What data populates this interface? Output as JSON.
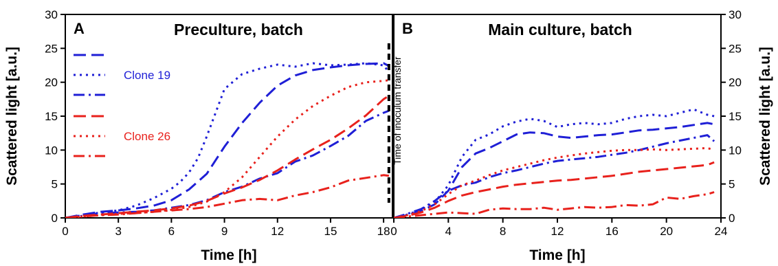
{
  "chart_data": [
    {
      "type": "line",
      "panel_label": "A",
      "title": "Preculture, batch",
      "xlabel": "Time [h]",
      "ylabel": "Scattered light   [a.u.]",
      "xlim": [
        0,
        18.5
      ],
      "ylim": [
        0,
        30
      ],
      "xticks": [
        0,
        3,
        6,
        9,
        12,
        15,
        18
      ],
      "yticks": [
        0,
        5,
        10,
        15,
        20,
        25,
        30
      ],
      "grid": false,
      "legend_position": "top-left",
      "legend_groups": [
        {
          "label": "Clone 19",
          "color": "#1f1fd6",
          "styles": [
            "dashed",
            "dotted",
            "dash-dot"
          ]
        },
        {
          "label": "Clone 26",
          "color": "#e8211c",
          "styles": [
            "dashed",
            "dotted",
            "dash-dot"
          ]
        }
      ],
      "annotation": {
        "x": 18.3,
        "text": "Time of inoculum transfer"
      },
      "series": [
        {
          "color": "#1f1fd6",
          "style": "dashed",
          "x": [
            0,
            1,
            2,
            3,
            4,
            5,
            6,
            7,
            8,
            9,
            10,
            11,
            12,
            13,
            14,
            15,
            16,
            17,
            18,
            18.3
          ],
          "y": [
            0,
            0.5,
            0.9,
            1.1,
            1.4,
            1.8,
            2.6,
            4.2,
            6.5,
            10.5,
            14,
            17,
            19.5,
            21,
            21.8,
            22.2,
            22.5,
            22.7,
            22.8,
            22.4
          ]
        },
        {
          "color": "#1f1fd6",
          "style": "dotted",
          "x": [
            0,
            1,
            2,
            3,
            4,
            5,
            6,
            6.5,
            7,
            7.5,
            8,
            8.5,
            9,
            10,
            11,
            12,
            13,
            14,
            15,
            16,
            17,
            18,
            18.3
          ],
          "y": [
            0,
            0.4,
            0.8,
            1.1,
            1.8,
            2.9,
            4.3,
            5.3,
            6.7,
            8.8,
            12,
            15.5,
            19,
            21.2,
            22,
            22.6,
            22.3,
            22.8,
            22.5,
            22.6,
            22.8,
            22.5,
            21.5
          ]
        },
        {
          "color": "#1f1fd6",
          "style": "dash-dot",
          "x": [
            0,
            1,
            2,
            3,
            4,
            5,
            6,
            7,
            8,
            9,
            10,
            11,
            12,
            13,
            14,
            15,
            16,
            17,
            18,
            18.3
          ],
          "y": [
            0,
            0.3,
            0.7,
            0.8,
            0.9,
            1.1,
            1.5,
            1.9,
            2.6,
            3.8,
            4.6,
            5.8,
            6.6,
            8.3,
            9.2,
            10.6,
            12.1,
            14.3,
            15.5,
            15.8
          ]
        },
        {
          "color": "#e8211c",
          "style": "dashed",
          "x": [
            0,
            1,
            2,
            3,
            4,
            5,
            6,
            7,
            8,
            9,
            10,
            11,
            12,
            13,
            14,
            15,
            16,
            17,
            18,
            18.3
          ],
          "y": [
            0,
            0.3,
            0.5,
            0.7,
            0.9,
            1.1,
            1.4,
            1.8,
            2.5,
            3.6,
            4.5,
            5.6,
            7.0,
            8.6,
            10.1,
            11.5,
            13.2,
            15.1,
            17.5,
            18.0
          ]
        },
        {
          "color": "#e8211c",
          "style": "dotted",
          "x": [
            0,
            1,
            2,
            3,
            4,
            5,
            6,
            7,
            8,
            9,
            10,
            11,
            12,
            13,
            14,
            15,
            16,
            17,
            18,
            18.3
          ],
          "y": [
            0,
            0.2,
            0.4,
            0.6,
            0.7,
            0.9,
            1.2,
            1.6,
            2.4,
            3.8,
            6.0,
            9.0,
            12.0,
            14.5,
            16.5,
            18.0,
            19.3,
            20.0,
            20.2,
            20.3
          ]
        },
        {
          "color": "#e8211c",
          "style": "dash-dot",
          "x": [
            0,
            1,
            2,
            3,
            4,
            5,
            6,
            7,
            8,
            9,
            10,
            11,
            12,
            13,
            14,
            15,
            16,
            17,
            18,
            18.3
          ],
          "y": [
            0,
            0.2,
            0.4,
            0.5,
            0.7,
            0.9,
            1.1,
            1.3,
            1.6,
            2.1,
            2.6,
            2.8,
            2.6,
            3.3,
            3.8,
            4.5,
            5.5,
            5.9,
            6.3,
            6.2
          ]
        }
      ]
    },
    {
      "type": "line",
      "panel_label": "B",
      "title": "Main culture, batch",
      "xlabel": "Time [h]",
      "ylabel": "Scattered light   [a.u.]",
      "xlim": [
        0,
        24
      ],
      "ylim": [
        0,
        30
      ],
      "xticks": [
        0,
        4,
        8,
        12,
        16,
        20,
        24
      ],
      "yticks": [
        0,
        5,
        10,
        15,
        20,
        25,
        30
      ],
      "grid": false,
      "series": [
        {
          "color": "#1f1fd6",
          "style": "dashed",
          "x": [
            0,
            1,
            2,
            3,
            4,
            5,
            6,
            7,
            8,
            9,
            10,
            11,
            12,
            13,
            14,
            15,
            16,
            17,
            18,
            19,
            20,
            21,
            22,
            23,
            23.5
          ],
          "y": [
            0,
            0.4,
            1.0,
            2.0,
            4.0,
            7.5,
            9.5,
            10.3,
            11.3,
            12.3,
            12.6,
            12.5,
            12.0,
            11.8,
            12.0,
            12.2,
            12.3,
            12.6,
            12.9,
            13.0,
            13.2,
            13.4,
            13.7,
            14.0,
            13.8
          ]
        },
        {
          "color": "#1f1fd6",
          "style": "dotted",
          "x": [
            0,
            1,
            2,
            3,
            4,
            5,
            6,
            7,
            8,
            9,
            10,
            11,
            12,
            13,
            14,
            15,
            16,
            17,
            18,
            19,
            20,
            21,
            22,
            23,
            23.5
          ],
          "y": [
            0,
            0.5,
            1.2,
            2.3,
            4.8,
            9.0,
            11.5,
            12.3,
            13.5,
            14.2,
            14.6,
            14.3,
            13.4,
            13.8,
            14.0,
            13.8,
            14.0,
            14.6,
            15.0,
            15.2,
            15.0,
            15.5,
            16.0,
            15.2,
            15.0
          ]
        },
        {
          "color": "#1f1fd6",
          "style": "dash-dot",
          "x": [
            0,
            1,
            2,
            3,
            4,
            5,
            6,
            7,
            8,
            9,
            10,
            11,
            12,
            13,
            14,
            15,
            16,
            17,
            18,
            19,
            20,
            21,
            22,
            23,
            23.5
          ],
          "y": [
            0,
            0.6,
            1.3,
            2.5,
            4.0,
            4.8,
            5.2,
            6.0,
            6.6,
            7.0,
            7.5,
            8.0,
            8.4,
            8.6,
            8.8,
            9.0,
            9.3,
            9.6,
            10.0,
            10.5,
            11.0,
            11.4,
            11.8,
            12.2,
            11.3
          ]
        },
        {
          "color": "#e8211c",
          "style": "dashed",
          "x": [
            0,
            1,
            2,
            3,
            4,
            5,
            6,
            7,
            8,
            9,
            10,
            11,
            12,
            13,
            14,
            15,
            16,
            17,
            18,
            19,
            20,
            21,
            22,
            23,
            23.5
          ],
          "y": [
            0,
            0.3,
            0.8,
            1.5,
            2.5,
            3.3,
            3.8,
            4.2,
            4.6,
            4.9,
            5.1,
            5.3,
            5.5,
            5.6,
            5.8,
            6.0,
            6.2,
            6.5,
            6.8,
            7.0,
            7.2,
            7.4,
            7.6,
            7.8,
            8.2
          ]
        },
        {
          "color": "#e8211c",
          "style": "dotted",
          "x": [
            0,
            1,
            2,
            3,
            4,
            5,
            6,
            7,
            8,
            9,
            10,
            11,
            12,
            13,
            14,
            15,
            16,
            17,
            18,
            19,
            20,
            21,
            22,
            23,
            23.5
          ],
          "y": [
            0,
            0.4,
            1.0,
            2.0,
            3.5,
            4.8,
            5.5,
            6.3,
            7.0,
            7.5,
            8.0,
            8.5,
            8.9,
            9.2,
            9.5,
            9.7,
            9.9,
            10.0,
            10.0,
            10.1,
            10.0,
            10.1,
            10.2,
            10.3,
            10.0
          ]
        },
        {
          "color": "#e8211c",
          "style": "dash-dot",
          "x": [
            0,
            1,
            2,
            3,
            4,
            5,
            6,
            7,
            8,
            9,
            10,
            11,
            12,
            13,
            14,
            15,
            16,
            17,
            18,
            19,
            20,
            21,
            22,
            23,
            23.5
          ],
          "y": [
            0,
            0.2,
            0.4,
            0.6,
            0.8,
            0.7,
            0.6,
            1.2,
            1.4,
            1.3,
            1.3,
            1.5,
            1.2,
            1.4,
            1.6,
            1.5,
            1.6,
            1.9,
            1.8,
            2.0,
            3.0,
            2.8,
            3.2,
            3.5,
            3.8
          ]
        }
      ]
    }
  ]
}
